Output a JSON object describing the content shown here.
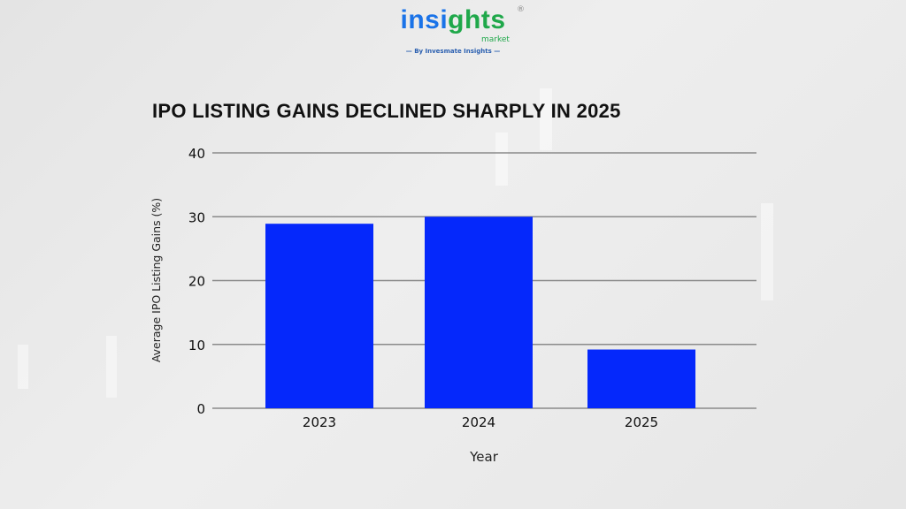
{
  "logo": {
    "word_part1": "insi",
    "word_part2": "ghts",
    "suffix": "market",
    "registered": "®",
    "tagline": "By Invesmate Insights"
  },
  "colors": {
    "bar": "#0528fb",
    "grid": "#8a8a8a",
    "background": "#e8e8e8",
    "logo_blue": "#1a73e8",
    "logo_green": "#1fa84a"
  },
  "chart_data": {
    "type": "bar",
    "title": "IPO LISTING GAINS DECLINED SHARPLY IN 2025",
    "xlabel": "Year",
    "ylabel": "Average IPO Listing Gains (%)",
    "categories": [
      "2023",
      "2024",
      "2025"
    ],
    "values": [
      28.9,
      30,
      9.2
    ],
    "ylim": [
      0,
      40
    ],
    "yticks": [
      "0",
      "10",
      "20",
      "30",
      "40"
    ],
    "grid": true,
    "legend": "none"
  }
}
